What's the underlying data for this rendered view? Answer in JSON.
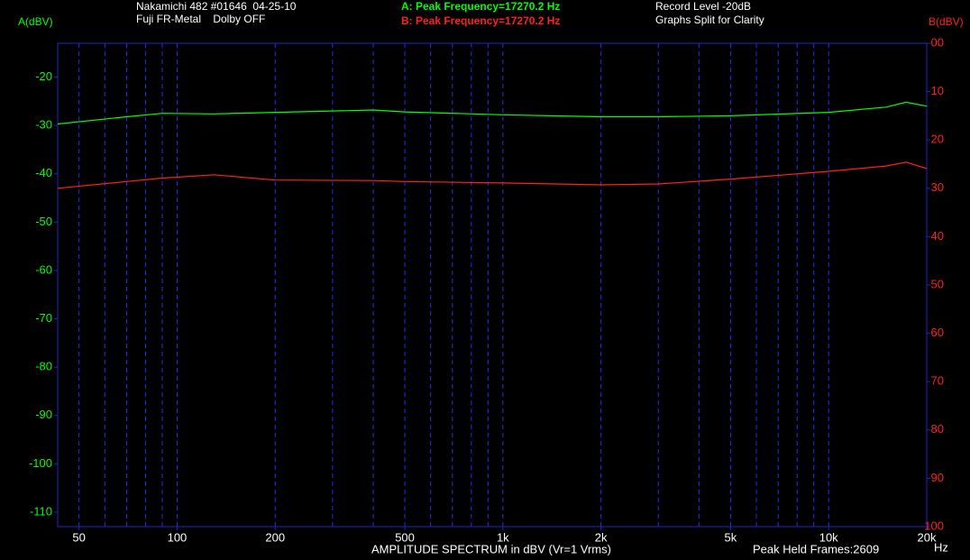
{
  "chart_data": {
    "type": "line",
    "header": [
      {
        "text": "Nakamichi 482 #01646  04-25-10",
        "color": "#ffffff"
      },
      {
        "text": "Fuji FR-Metal    Dolby OFF",
        "color": "#ffffff"
      },
      {
        "text": "A: Peak Frequency=17270.2 Hz",
        "color": "#00ff00"
      },
      {
        "text": "B: Peak Frequency=17270.2 Hz",
        "color": "#ff2020"
      },
      {
        "text": "Record Level -20dB",
        "color": "#ffffff"
      },
      {
        "text": "Graphs Split for Clarity",
        "color": "#ffffff"
      }
    ],
    "ylabel": "A(dBV)",
    "y2label": "B(dBV)",
    "xlabel": "AMPLITUDE SPECTRUM in dBV (Vr=1 Vrms)",
    "xunit": "Hz",
    "footnote": "Peak Held Frames:2609",
    "x": [
      43,
      70,
      90,
      130,
      200,
      400,
      500,
      1000,
      2000,
      3000,
      5000,
      10000,
      15000,
      17270,
      20000
    ],
    "series": [
      {
        "color": "#00ff00",
        "values": [
          -29.7,
          -28.2,
          -27.5,
          -27.6,
          -27.3,
          -26.8,
          -27.2,
          -27.8,
          -28.2,
          -28.2,
          -28.0,
          -27.3,
          -26.2,
          -25.2,
          -26.0
        ]
      },
      {
        "color": "#ff2020",
        "axis": "y2",
        "values": [
          -30.0,
          -28.6,
          -27.9,
          -27.2,
          -28.3,
          -28.4,
          -28.6,
          -28.9,
          -29.3,
          -29.1,
          -28.1,
          -26.5,
          -25.4,
          -24.6,
          -25.9
        ]
      }
    ],
    "xscale": "log",
    "xlim": [
      43,
      20000
    ],
    "xticks": [
      50,
      100,
      200,
      500,
      {
        "value": 1000,
        "label": "1k"
      },
      {
        "value": 2000,
        "label": "2k"
      },
      {
        "value": 5000,
        "label": "5k"
      },
      {
        "value": 10000,
        "label": "10k"
      },
      {
        "value": 20000,
        "label": "20k"
      }
    ],
    "xgrid": [
      50,
      60,
      70,
      80,
      90,
      100,
      200,
      300,
      400,
      500,
      600,
      700,
      800,
      900,
      1000,
      2000,
      3000,
      4000,
      5000,
      6000,
      7000,
      8000,
      9000,
      10000,
      20000
    ],
    "ylim": [
      -113,
      -13
    ],
    "yticks": [
      -20,
      -30,
      -40,
      -50,
      -60,
      -70,
      -80,
      -90,
      -100,
      -110
    ],
    "y2lim": [
      -100,
      0
    ],
    "y2ticks": [
      {
        "value": 0,
        "label": "00"
      },
      {
        "value": -10,
        "label": "10"
      },
      {
        "value": -20,
        "label": "20"
      },
      {
        "value": -30,
        "label": "30"
      },
      {
        "value": -40,
        "label": "40"
      },
      {
        "value": -50,
        "label": "50"
      },
      {
        "value": -60,
        "label": "60"
      },
      {
        "value": -70,
        "label": "70"
      },
      {
        "value": -80,
        "label": "80"
      },
      {
        "value": -90,
        "label": "90"
      },
      -100
    ],
    "ytick_color": "#00ff00",
    "y2tick_color": "#ff2020",
    "frame_color": "#2222cc",
    "grid_color": "#2a2aee"
  }
}
